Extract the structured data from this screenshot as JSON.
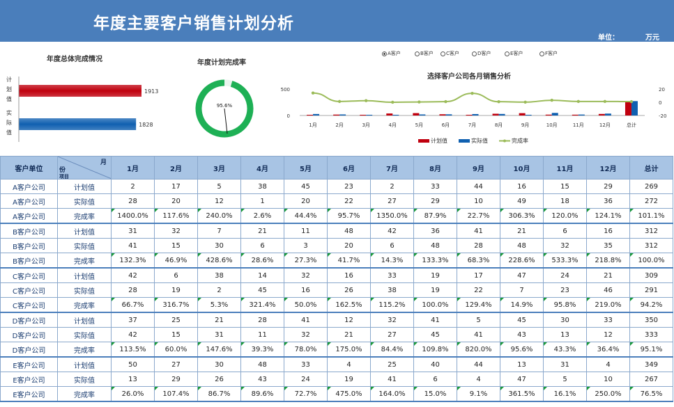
{
  "header": {
    "title": "年度主要客户销售计划分析",
    "unit_label": "单位：",
    "unit_value": "万元"
  },
  "colors": {
    "header": "#4a7ebb",
    "plan": "#c0000e",
    "actual": "#1060b0",
    "rate": "#9bbb59",
    "donut": "#1eb055"
  },
  "chart_data": [
    {
      "type": "bar",
      "title": "年度总体完成情况",
      "categories": [
        "计划值",
        "实际值"
      ],
      "values": [
        1913,
        1828
      ],
      "xlim": [
        0,
        2500
      ]
    },
    {
      "type": "pie",
      "title": "年度计划完成率",
      "values": [
        95.6,
        4.4
      ],
      "label": "95.6%"
    },
    {
      "type": "bar",
      "title": "选择客户公司各月销售分析",
      "categories": [
        "1月",
        "2月",
        "3月",
        "4月",
        "5月",
        "6月",
        "7月",
        "8月",
        "9月",
        "10月",
        "11月",
        "12月",
        "总计"
      ],
      "series": [
        {
          "name": "计划值",
          "values": [
            2,
            17,
            5,
            38,
            45,
            23,
            2,
            33,
            44,
            16,
            15,
            29,
            269
          ]
        },
        {
          "name": "实际值",
          "values": [
            28,
            20,
            12,
            1,
            20,
            22,
            27,
            29,
            10,
            49,
            18,
            36,
            272
          ]
        },
        {
          "name": "完成率",
          "values": [
            14.0,
            1.18,
            2.4,
            0.03,
            0.44,
            0.96,
            13.5,
            0.88,
            0.23,
            3.06,
            1.2,
            1.24,
            1.01
          ]
        }
      ],
      "ylim": [
        0,
        500
      ],
      "y_ticks": [
        "500",
        "0"
      ],
      "y2_ticks": [
        "20",
        "0",
        "-20"
      ],
      "legend_position": "bottom"
    }
  ],
  "selector": {
    "options": [
      {
        "label": "A客户",
        "selected": true
      },
      {
        "label": "B客户",
        "selected": false
      },
      {
        "label": "C客户",
        "selected": false
      },
      {
        "label": "D客户",
        "selected": false
      },
      {
        "label": "E客户",
        "selected": false
      },
      {
        "label": "F客户",
        "selected": false
      }
    ]
  },
  "table": {
    "corner": {
      "top": "月",
      "mid": "份",
      "bottom": "项目"
    },
    "col_customer": "客户单位",
    "months": [
      "1月",
      "2月",
      "3月",
      "4月",
      "5月",
      "6月",
      "7月",
      "8月",
      "9月",
      "10月",
      "11月",
      "12月"
    ],
    "total_label": "总计",
    "rows": [
      {
        "customer": "A客户公司",
        "item": "计划值",
        "values": [
          "2",
          "17",
          "5",
          "38",
          "45",
          "23",
          "2",
          "33",
          "44",
          "16",
          "15",
          "29"
        ],
        "total": "269"
      },
      {
        "customer": "A客户公司",
        "item": "实际值",
        "values": [
          "28",
          "20",
          "12",
          "1",
          "20",
          "22",
          "27",
          "29",
          "10",
          "49",
          "18",
          "36"
        ],
        "total": "272"
      },
      {
        "customer": "A客户公司",
        "item": "完成率",
        "values": [
          "1400.0%",
          "117.6%",
          "240.0%",
          "2.6%",
          "44.4%",
          "95.7%",
          "1350.0%",
          "87.9%",
          "22.7%",
          "306.3%",
          "120.0%",
          "124.1%"
        ],
        "total": "101.1%"
      },
      {
        "customer": "B客户公司",
        "item": "计划值",
        "values": [
          "31",
          "32",
          "7",
          "21",
          "11",
          "48",
          "42",
          "36",
          "41",
          "21",
          "6",
          "16"
        ],
        "total": "312"
      },
      {
        "customer": "B客户公司",
        "item": "实际值",
        "values": [
          "41",
          "15",
          "30",
          "6",
          "3",
          "20",
          "6",
          "48",
          "28",
          "48",
          "32",
          "35"
        ],
        "total": "312"
      },
      {
        "customer": "B客户公司",
        "item": "完成率",
        "values": [
          "132.3%",
          "46.9%",
          "428.6%",
          "28.6%",
          "27.3%",
          "41.7%",
          "14.3%",
          "133.3%",
          "68.3%",
          "228.6%",
          "533.3%",
          "218.8%"
        ],
        "total": "100.0%"
      },
      {
        "customer": "C客户公司",
        "item": "计划值",
        "values": [
          "42",
          "6",
          "38",
          "14",
          "32",
          "16",
          "33",
          "19",
          "17",
          "47",
          "24",
          "21"
        ],
        "total": "309"
      },
      {
        "customer": "C客户公司",
        "item": "实际值",
        "values": [
          "28",
          "19",
          "2",
          "45",
          "16",
          "26",
          "38",
          "19",
          "22",
          "7",
          "23",
          "46"
        ],
        "total": "291"
      },
      {
        "customer": "C客户公司",
        "item": "完成率",
        "values": [
          "66.7%",
          "316.7%",
          "5.3%",
          "321.4%",
          "50.0%",
          "162.5%",
          "115.2%",
          "100.0%",
          "129.4%",
          "14.9%",
          "95.8%",
          "219.0%"
        ],
        "total": "94.2%"
      },
      {
        "customer": "D客户公司",
        "item": "计划值",
        "values": [
          "37",
          "25",
          "21",
          "28",
          "41",
          "12",
          "32",
          "41",
          "5",
          "45",
          "30",
          "33"
        ],
        "total": "350"
      },
      {
        "customer": "D客户公司",
        "item": "实际值",
        "values": [
          "42",
          "15",
          "31",
          "11",
          "32",
          "21",
          "27",
          "45",
          "41",
          "43",
          "13",
          "12"
        ],
        "total": "333"
      },
      {
        "customer": "D客户公司",
        "item": "完成率",
        "values": [
          "113.5%",
          "60.0%",
          "147.6%",
          "39.3%",
          "78.0%",
          "175.0%",
          "84.4%",
          "109.8%",
          "820.0%",
          "95.6%",
          "43.3%",
          "36.4%"
        ],
        "total": "95.1%"
      },
      {
        "customer": "E客户公司",
        "item": "计划值",
        "values": [
          "50",
          "27",
          "30",
          "48",
          "33",
          "4",
          "25",
          "40",
          "44",
          "13",
          "31",
          "4"
        ],
        "total": "349"
      },
      {
        "customer": "E客户公司",
        "item": "实际值",
        "values": [
          "13",
          "29",
          "26",
          "43",
          "24",
          "19",
          "41",
          "6",
          "4",
          "47",
          "5",
          "10"
        ],
        "total": "267"
      },
      {
        "customer": "E客户公司",
        "item": "完成率",
        "values": [
          "26.0%",
          "107.4%",
          "86.7%",
          "89.6%",
          "72.7%",
          "475.0%",
          "164.0%",
          "15.0%",
          "9.1%",
          "361.5%",
          "16.1%",
          "250.0%"
        ],
        "total": "76.5%"
      }
    ]
  }
}
